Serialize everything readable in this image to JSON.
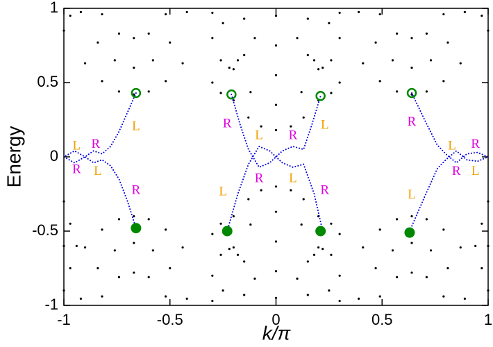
{
  "chart_data": {
    "type": "scatter",
    "xlabel": "k/π",
    "ylabel": "Energy",
    "xlim": [
      -1,
      1
    ],
    "xticks": [
      -1,
      -0.5,
      0,
      0.5,
      1
    ],
    "ylim": [
      -1,
      1
    ],
    "yticks": [
      -1,
      -0.5,
      0,
      0.5,
      1
    ],
    "series": [
      {
        "marker": "dot",
        "color": "#000000",
        "x": [
          -0.9,
          -0.82,
          -0.74,
          -0.67,
          -0.6,
          -0.52,
          -0.44,
          -0.92,
          -0.84,
          -0.76,
          -0.67,
          -0.58,
          -0.5,
          -0.42,
          -0.82,
          -0.74,
          -0.67,
          -0.6,
          -0.52,
          -1,
          -0.97
        ],
        "values": [
          0.63,
          0.51,
          0.44,
          0.42,
          0.44,
          0.51,
          0.63,
          0.975,
          0.77,
          0.65,
          0.6,
          0.65,
          0.77,
          0.975,
          0.96,
          0.83,
          0.8,
          0.83,
          0.96,
          0.85,
          0.95
        ]
      },
      {
        "marker": "dot",
        "color": "#000000",
        "x": [
          -0.9,
          -0.82,
          -0.74,
          -0.67,
          -0.6,
          -0.52,
          -0.44,
          -0.92,
          -0.84,
          -0.76,
          -0.67,
          -0.58,
          -0.5,
          -0.42,
          -0.82,
          -0.74,
          -0.67,
          -0.6,
          -0.52,
          -1,
          -0.97,
          -0.94,
          -1,
          -0.97,
          -1
        ],
        "values": [
          -0.61,
          -0.49,
          -0.42,
          -0.4,
          -0.42,
          -0.49,
          -0.61,
          -0.955,
          -0.75,
          -0.63,
          -0.58,
          -0.63,
          -0.75,
          -0.955,
          -0.94,
          -0.81,
          -0.78,
          -0.81,
          -0.94,
          -0.3,
          -0.45,
          -0.6,
          -0.6,
          -0.75,
          -0.9
        ]
      },
      {
        "marker": "dot",
        "color": "#000000",
        "x": [
          0.41,
          0.49,
          0.57,
          0.64,
          0.71,
          0.79,
          0.87,
          0.39,
          0.47,
          0.55,
          0.64,
          0.73,
          0.81,
          0.89,
          0.49,
          0.57,
          0.64,
          0.71,
          0.79,
          1,
          0.97
        ],
        "values": [
          0.63,
          0.51,
          0.44,
          0.42,
          0.44,
          0.51,
          0.63,
          0.975,
          0.77,
          0.65,
          0.6,
          0.65,
          0.77,
          0.975,
          0.96,
          0.83,
          0.8,
          0.83,
          0.96,
          0.85,
          0.95
        ]
      },
      {
        "marker": "dot",
        "color": "#000000",
        "x": [
          0.41,
          0.49,
          0.57,
          0.64,
          0.71,
          0.79,
          0.87,
          0.39,
          0.47,
          0.55,
          0.64,
          0.73,
          0.81,
          0.89,
          0.49,
          0.57,
          0.64,
          0.71,
          0.79,
          1,
          0.97,
          0.94,
          1,
          0.97,
          1
        ],
        "values": [
          -0.61,
          -0.49,
          -0.42,
          -0.4,
          -0.42,
          -0.49,
          -0.61,
          -0.955,
          -0.75,
          -0.63,
          -0.58,
          -0.63,
          -0.75,
          -0.955,
          -0.94,
          -0.81,
          -0.78,
          -0.81,
          -0.94,
          -0.3,
          -0.45,
          -0.6,
          -0.6,
          -0.75,
          -0.9
        ]
      },
      {
        "marker": "dot",
        "color": "#000000",
        "x": [
          -0.2,
          -0.13,
          -0.07,
          0,
          0.07,
          0.13,
          0.2,
          -0.2,
          -0.12,
          0,
          0.12,
          0.2,
          -0.15,
          0,
          0.15,
          -0.3,
          -0.26,
          0.26,
          0.3,
          -0.3,
          -0.26,
          -0.22,
          -0.18,
          0.18,
          0.22,
          0.26,
          0.3,
          -0.25,
          -0.1,
          0,
          0.1,
          0.25,
          -0.3,
          0.3,
          0,
          -0.15,
          0.15
        ],
        "values": [
          0.38,
          0.265,
          0.205,
          0.18,
          0.205,
          0.265,
          0.38,
          0.59,
          0.436,
          0.35,
          0.436,
          0.59,
          0.685,
          0.55,
          0.685,
          0.5,
          0.43,
          0.43,
          0.5,
          0.8,
          0.65,
          0.6,
          0.65,
          0.65,
          0.6,
          0.65,
          0.8,
          0.9,
          0.8,
          0.75,
          0.8,
          0.9,
          0.97,
          0.97,
          0.95,
          0.93,
          0.93
        ]
      },
      {
        "marker": "dot",
        "color": "#000000",
        "x": [
          -0.2,
          -0.13,
          -0.07,
          0,
          0.07,
          0.13,
          0.2,
          -0.2,
          -0.12,
          0,
          0.12,
          0.2,
          -0.15,
          0,
          0.15,
          -0.3,
          -0.26,
          0.26,
          0.3,
          -0.3,
          -0.26,
          -0.22,
          -0.18,
          0.18,
          0.22,
          0.26,
          0.3,
          -0.25,
          -0.1,
          0,
          0.1,
          0.25,
          -0.3,
          0.3,
          0,
          -0.15,
          0.15
        ],
        "values": [
          -0.4,
          -0.285,
          -0.225,
          -0.2,
          -0.225,
          -0.285,
          -0.4,
          -0.61,
          -0.456,
          -0.37,
          -0.456,
          -0.61,
          -0.705,
          -0.57,
          -0.705,
          -0.52,
          -0.45,
          -0.45,
          -0.52,
          -0.8,
          -0.66,
          -0.62,
          -0.66,
          -0.66,
          -0.62,
          -0.66,
          -0.8,
          -0.9,
          -0.82,
          -0.77,
          -0.82,
          -0.9,
          -0.97,
          -0.97,
          -0.95,
          -0.93,
          -0.93
        ]
      },
      {
        "marker": "line",
        "color": "#0000dd",
        "x": [
          -0.66,
          -0.7,
          -0.74,
          -0.78,
          -0.82,
          -0.86,
          -0.9,
          -0.95,
          -1,
          null,
          -0.66,
          -0.7,
          -0.74,
          -0.78,
          -0.82,
          -0.86,
          -0.9,
          -0.95,
          -1,
          null,
          -0.21,
          -0.17,
          -0.13,
          -0.08,
          -0.03,
          0,
          0.03,
          0.08,
          0.13,
          0.17,
          0.21,
          null,
          -0.23,
          -0.18,
          -0.13,
          -0.08,
          -0.03,
          0,
          0.03,
          0.08,
          0.13,
          0.18,
          0.22,
          null,
          0.64,
          0.7,
          0.76,
          0.8,
          0.85,
          0.9,
          0.95,
          1,
          null,
          0.63,
          0.7,
          0.76,
          0.8,
          0.85,
          0.9,
          0.95,
          1
        ],
        "values": [
          0.43,
          0.3,
          0.17,
          0.07,
          0.02,
          0.04,
          0,
          -0.04,
          0,
          null,
          -0.48,
          -0.3,
          -0.15,
          -0.06,
          -0.02,
          -0.04,
          0,
          0.04,
          0,
          null,
          0.42,
          0.22,
          0.05,
          -0.07,
          -0.04,
          0,
          0.04,
          0.07,
          0.05,
          0.22,
          0.41,
          null,
          -0.5,
          -0.25,
          -0.05,
          0.07,
          0.04,
          0,
          -0.04,
          -0.07,
          -0.05,
          -0.25,
          -0.5,
          null,
          0.43,
          0.25,
          0.08,
          0.02,
          -0.04,
          0.02,
          0.03,
          0,
          null,
          -0.5,
          -0.27,
          -0.08,
          -0.02,
          0.04,
          -0.02,
          -0.03,
          0
        ]
      },
      {
        "marker": "open-circle",
        "color": "#008800",
        "x": [
          -0.66,
          -0.21,
          0.21,
          0.64
        ],
        "values": [
          0.43,
          0.42,
          0.41,
          0.43
        ]
      },
      {
        "marker": "filled-circle",
        "color": "#008800",
        "x": [
          -0.66,
          -0.23,
          0.21,
          0.63
        ],
        "values": [
          -0.48,
          -0.5,
          -0.5,
          -0.51
        ]
      }
    ],
    "annotations": [
      {
        "text": "L",
        "x": -0.66,
        "y": 0.2,
        "color": "#f0a000"
      },
      {
        "text": "R",
        "x": -0.66,
        "y": -0.23,
        "color": "#e000e0"
      },
      {
        "text": "L",
        "x": -0.94,
        "y": 0.07,
        "color": "#f0a000"
      },
      {
        "text": "R",
        "x": -0.85,
        "y": 0.08,
        "color": "#e000e0"
      },
      {
        "text": "R",
        "x": -0.94,
        "y": -0.09,
        "color": "#e000e0"
      },
      {
        "text": "L",
        "x": -0.84,
        "y": -0.1,
        "color": "#f0a000"
      },
      {
        "text": "R",
        "x": -0.23,
        "y": 0.22,
        "color": "#e000e0"
      },
      {
        "text": "L",
        "x": -0.08,
        "y": 0.14,
        "color": "#f0a000"
      },
      {
        "text": "R",
        "x": 0.08,
        "y": 0.14,
        "color": "#e000e0"
      },
      {
        "text": "R",
        "x": -0.08,
        "y": -0.15,
        "color": "#e000e0"
      },
      {
        "text": "L",
        "x": 0.08,
        "y": -0.15,
        "color": "#f0a000"
      },
      {
        "text": "L",
        "x": -0.25,
        "y": -0.24,
        "color": "#f0a000"
      },
      {
        "text": "R",
        "x": 0.23,
        "y": -0.23,
        "color": "#e000e0"
      },
      {
        "text": "L",
        "x": 0.23,
        "y": 0.21,
        "color": "#f0a000"
      },
      {
        "text": "R",
        "x": 0.64,
        "y": 0.23,
        "color": "#e000e0"
      },
      {
        "text": "L",
        "x": 0.64,
        "y": -0.26,
        "color": "#f0a000"
      },
      {
        "text": "L",
        "x": 0.83,
        "y": 0.07,
        "color": "#f0a000"
      },
      {
        "text": "R",
        "x": 0.94,
        "y": 0.08,
        "color": "#e000e0"
      },
      {
        "text": "R",
        "x": 0.85,
        "y": -0.1,
        "color": "#e000e0"
      },
      {
        "text": "L",
        "x": 0.94,
        "y": -0.1,
        "color": "#f0a000"
      }
    ]
  }
}
